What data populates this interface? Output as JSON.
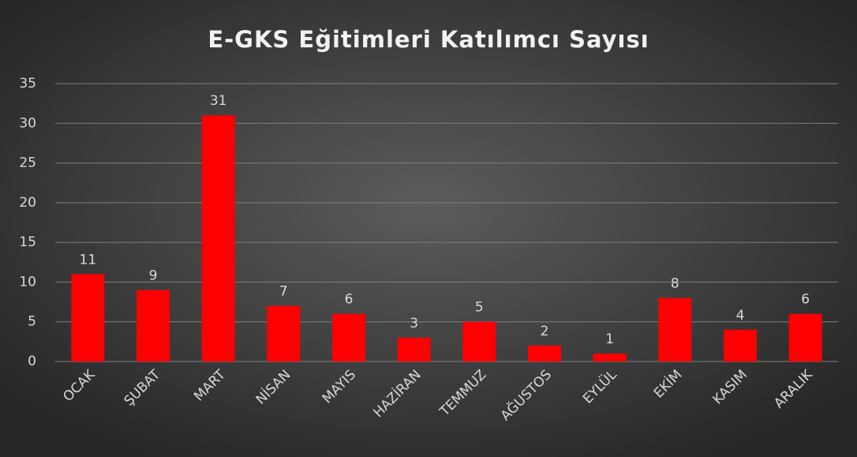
{
  "chart_data": {
    "type": "bar",
    "title": "E-GKS Eğitimleri Katılımcı Sayısı",
    "categories": [
      "OCAK",
      "ŞUBAT",
      "MART",
      "NİSAN",
      "MAYIS",
      "HAZİRAN",
      "TEMMUZ",
      "AĞUSTOS",
      "EYLÜL",
      "EKİM",
      "KASIM",
      "ARALIK"
    ],
    "values": [
      11,
      9,
      31,
      7,
      6,
      3,
      5,
      2,
      1,
      8,
      4,
      6
    ],
    "color": "#ff0000",
    "ylim": [
      0,
      35
    ],
    "yticks": [
      0,
      5,
      10,
      15,
      20,
      25,
      30,
      35
    ],
    "grid": true
  }
}
